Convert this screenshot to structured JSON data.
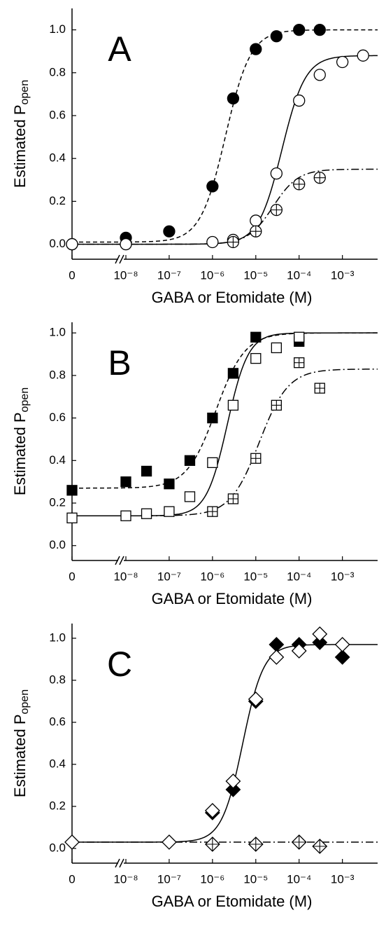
{
  "chart_data": [
    {
      "type": "scatter",
      "annotation": "A",
      "ylabel": "Estimated P",
      "ylabel_sub": "open",
      "xlabel": "GABA or Etomidate (M)",
      "log_x": true,
      "xlim": [
        0,
        0.0065
      ],
      "ylim": [
        -0.07,
        1.1
      ],
      "xticks": [
        0,
        {
          "value": 1e-08,
          "label": "10⁻⁸"
        },
        {
          "value": 1e-07,
          "label": "10⁻⁷"
        },
        {
          "value": 1e-06,
          "label": "10⁻⁶"
        },
        {
          "value": 1e-05,
          "label": "10⁻⁵"
        },
        {
          "value": 0.0001,
          "label": "10⁻⁴"
        },
        {
          "value": 0.001,
          "label": "10⁻³"
        }
      ],
      "yticks": [
        {
          "value": 0,
          "label": "0.0"
        },
        0.2,
        0.4,
        0.6,
        0.8,
        {
          "value": 1,
          "label": "1.0"
        }
      ],
      "series": [
        {
          "marker": "circle",
          "color": "#000000",
          "fill": "#000000",
          "cross": false,
          "x": [
            0,
            1e-08,
            1e-07,
            1e-06,
            3e-06,
            1e-05,
            3e-05,
            0.0001,
            0.0003
          ],
          "values": [
            0.0,
            0.03,
            0.06,
            0.27,
            0.68,
            0.91,
            0.97,
            1.0,
            1.0
          ]
        },
        {
          "marker": "circle",
          "color": "#000000",
          "fill": "#ffffff",
          "cross": false,
          "x": [
            0,
            1e-08,
            1e-06,
            3e-06,
            1e-05,
            3e-05,
            0.0001,
            0.0003,
            0.001,
            0.003
          ],
          "values": [
            0.0,
            0.0,
            0.01,
            0.02,
            0.11,
            0.33,
            0.67,
            0.79,
            0.85,
            0.88
          ]
        },
        {
          "marker": "circle",
          "color": "#000000",
          "fill": "#ffffff",
          "cross": true,
          "x": [
            3e-06,
            1e-05,
            3e-05,
            0.0001,
            0.0003
          ],
          "values": [
            0.01,
            0.06,
            0.16,
            0.28,
            0.31
          ]
        }
      ],
      "fits": [
        {
          "style": "dashed",
          "bottom": 0.01,
          "top": 1.0,
          "ec50": 2e-06,
          "n": 1.5
        },
        {
          "style": "solid",
          "bottom": 0.0,
          "top": 0.88,
          "ec50": 4e-05,
          "n": 1.6
        },
        {
          "style": "dashdot",
          "bottom": 0.0,
          "top": 0.35,
          "ec50": 2.5e-05,
          "n": 1.5
        }
      ]
    },
    {
      "type": "scatter",
      "annotation": "B",
      "ylabel": "Estimated P",
      "ylabel_sub": "open",
      "xlabel": "GABA or Etomidate (M)",
      "log_x": true,
      "xlim": [
        0,
        0.0065
      ],
      "ylim": [
        -0.07,
        1.05
      ],
      "xticks": [
        0,
        {
          "value": 1e-08,
          "label": "10⁻⁸"
        },
        {
          "value": 1e-07,
          "label": "10⁻⁷"
        },
        {
          "value": 1e-06,
          "label": "10⁻⁶"
        },
        {
          "value": 1e-05,
          "label": "10⁻⁵"
        },
        {
          "value": 0.0001,
          "label": "10⁻⁴"
        },
        {
          "value": 0.001,
          "label": "10⁻³"
        }
      ],
      "yticks": [
        {
          "value": 0,
          "label": "0.0"
        },
        0.2,
        0.4,
        0.6,
        0.8,
        {
          "value": 1,
          "label": "1.0"
        }
      ],
      "series": [
        {
          "marker": "square",
          "color": "#000000",
          "fill": "#000000",
          "cross": false,
          "x": [
            0,
            1e-08,
            3e-08,
            1e-07,
            3e-07,
            1e-06,
            3e-06,
            1e-05,
            0.0001
          ],
          "values": [
            0.26,
            0.3,
            0.35,
            0.29,
            0.4,
            0.6,
            0.81,
            0.98,
            0.96
          ]
        },
        {
          "marker": "square",
          "color": "#000000",
          "fill": "#ffffff",
          "cross": false,
          "x": [
            0,
            1e-08,
            3e-08,
            1e-07,
            3e-07,
            1e-06,
            3e-06,
            1e-05,
            3e-05,
            0.0001
          ],
          "values": [
            0.13,
            0.14,
            0.15,
            0.16,
            0.23,
            0.39,
            0.66,
            0.88,
            0.93,
            0.98
          ]
        },
        {
          "marker": "square",
          "color": "#000000",
          "fill": "#ffffff",
          "cross": true,
          "x": [
            1e-06,
            3e-06,
            1e-05,
            3e-05,
            0.0001,
            0.0003
          ],
          "values": [
            0.16,
            0.22,
            0.41,
            0.66,
            0.86,
            0.74
          ]
        }
      ],
      "fits": [
        {
          "style": "dashed",
          "bottom": 0.27,
          "top": 1.0,
          "ec50": 1.2e-06,
          "n": 1.3
        },
        {
          "style": "solid",
          "bottom": 0.14,
          "top": 1.0,
          "ec50": 2.2e-06,
          "n": 1.8
        },
        {
          "style": "dashdot",
          "bottom": 0.14,
          "top": 0.83,
          "ec50": 1.2e-05,
          "n": 1.3
        }
      ]
    },
    {
      "type": "scatter",
      "annotation": "C",
      "ylabel": "Estimated P",
      "ylabel_sub": "open",
      "xlabel": "GABA or Etomidate (M)",
      "log_x": true,
      "xlim": [
        0,
        0.0065
      ],
      "ylim": [
        -0.07,
        1.07
      ],
      "xticks": [
        0,
        {
          "value": 1e-08,
          "label": "10⁻⁸"
        },
        {
          "value": 1e-07,
          "label": "10⁻⁷"
        },
        {
          "value": 1e-06,
          "label": "10⁻⁶"
        },
        {
          "value": 1e-05,
          "label": "10⁻⁵"
        },
        {
          "value": 0.0001,
          "label": "10⁻⁴"
        },
        {
          "value": 0.001,
          "label": "10⁻³"
        }
      ],
      "yticks": [
        {
          "value": 0,
          "label": "0.0"
        },
        0.2,
        0.4,
        0.6,
        0.8,
        {
          "value": 1,
          "label": "1.0"
        }
      ],
      "series": [
        {
          "marker": "diamond",
          "color": "#000000",
          "fill": "#000000",
          "cross": false,
          "x": [
            1e-06,
            3e-06,
            1e-05,
            3e-05,
            0.0001,
            0.0003,
            0.001
          ],
          "values": [
            0.17,
            0.28,
            0.7,
            0.97,
            0.97,
            0.98,
            0.91
          ]
        },
        {
          "marker": "diamond",
          "color": "#000000",
          "fill": "#ffffff",
          "cross": false,
          "x": [
            0,
            1e-07,
            1e-06,
            3e-06,
            1e-05,
            3e-05,
            0.0001,
            0.0003,
            0.001
          ],
          "values": [
            0.03,
            0.03,
            0.18,
            0.32,
            0.71,
            0.91,
            0.94,
            1.02,
            0.97
          ]
        },
        {
          "marker": "diamond",
          "color": "#000000",
          "fill": "#ffffff",
          "cross": true,
          "x": [
            1e-06,
            1e-05,
            0.0001,
            0.0003
          ],
          "values": [
            0.02,
            0.02,
            0.03,
            0.01
          ]
        }
      ],
      "fits": [
        {
          "style": "solid",
          "bottom": 0.03,
          "top": 0.97,
          "ec50": 5e-06,
          "n": 1.8
        },
        {
          "style": "dashdot",
          "bottom": 0.03,
          "top": 0.03,
          "ec50": 1e-05,
          "n": 1
        }
      ]
    }
  ]
}
